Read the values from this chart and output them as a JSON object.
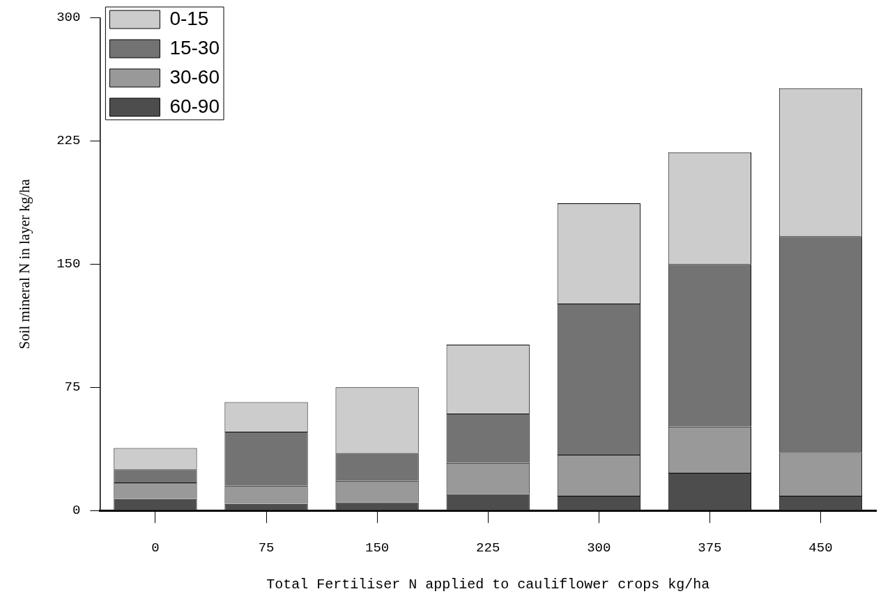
{
  "chart_data": {
    "type": "bar",
    "stacked": true,
    "xlabel": "Total Fertiliser N applied to cauliflower crops kg/ha",
    "ylabel": "Soil mineral N in layer kg/ha",
    "categories": [
      "0",
      "75",
      "150",
      "225",
      "300",
      "375",
      "450"
    ],
    "series": [
      {
        "name": "60-90",
        "color": "#4d4d4d",
        "values": [
          7,
          4,
          5,
          10,
          9,
          23,
          9
        ]
      },
      {
        "name": "30-60",
        "color": "#999999",
        "values": [
          10,
          11,
          13,
          19,
          25,
          28,
          26
        ]
      },
      {
        "name": "15-30",
        "color": "#737373",
        "values": [
          8,
          33,
          17,
          30,
          92,
          99,
          132
        ]
      },
      {
        "name": "0-15",
        "color": "#cccccc",
        "values": [
          13,
          18,
          40,
          42,
          61,
          68,
          90
        ]
      }
    ],
    "ylim": [
      0,
      300
    ],
    "yticks": [
      0,
      75,
      150,
      225,
      300
    ],
    "grid": false,
    "legend": "top left"
  }
}
